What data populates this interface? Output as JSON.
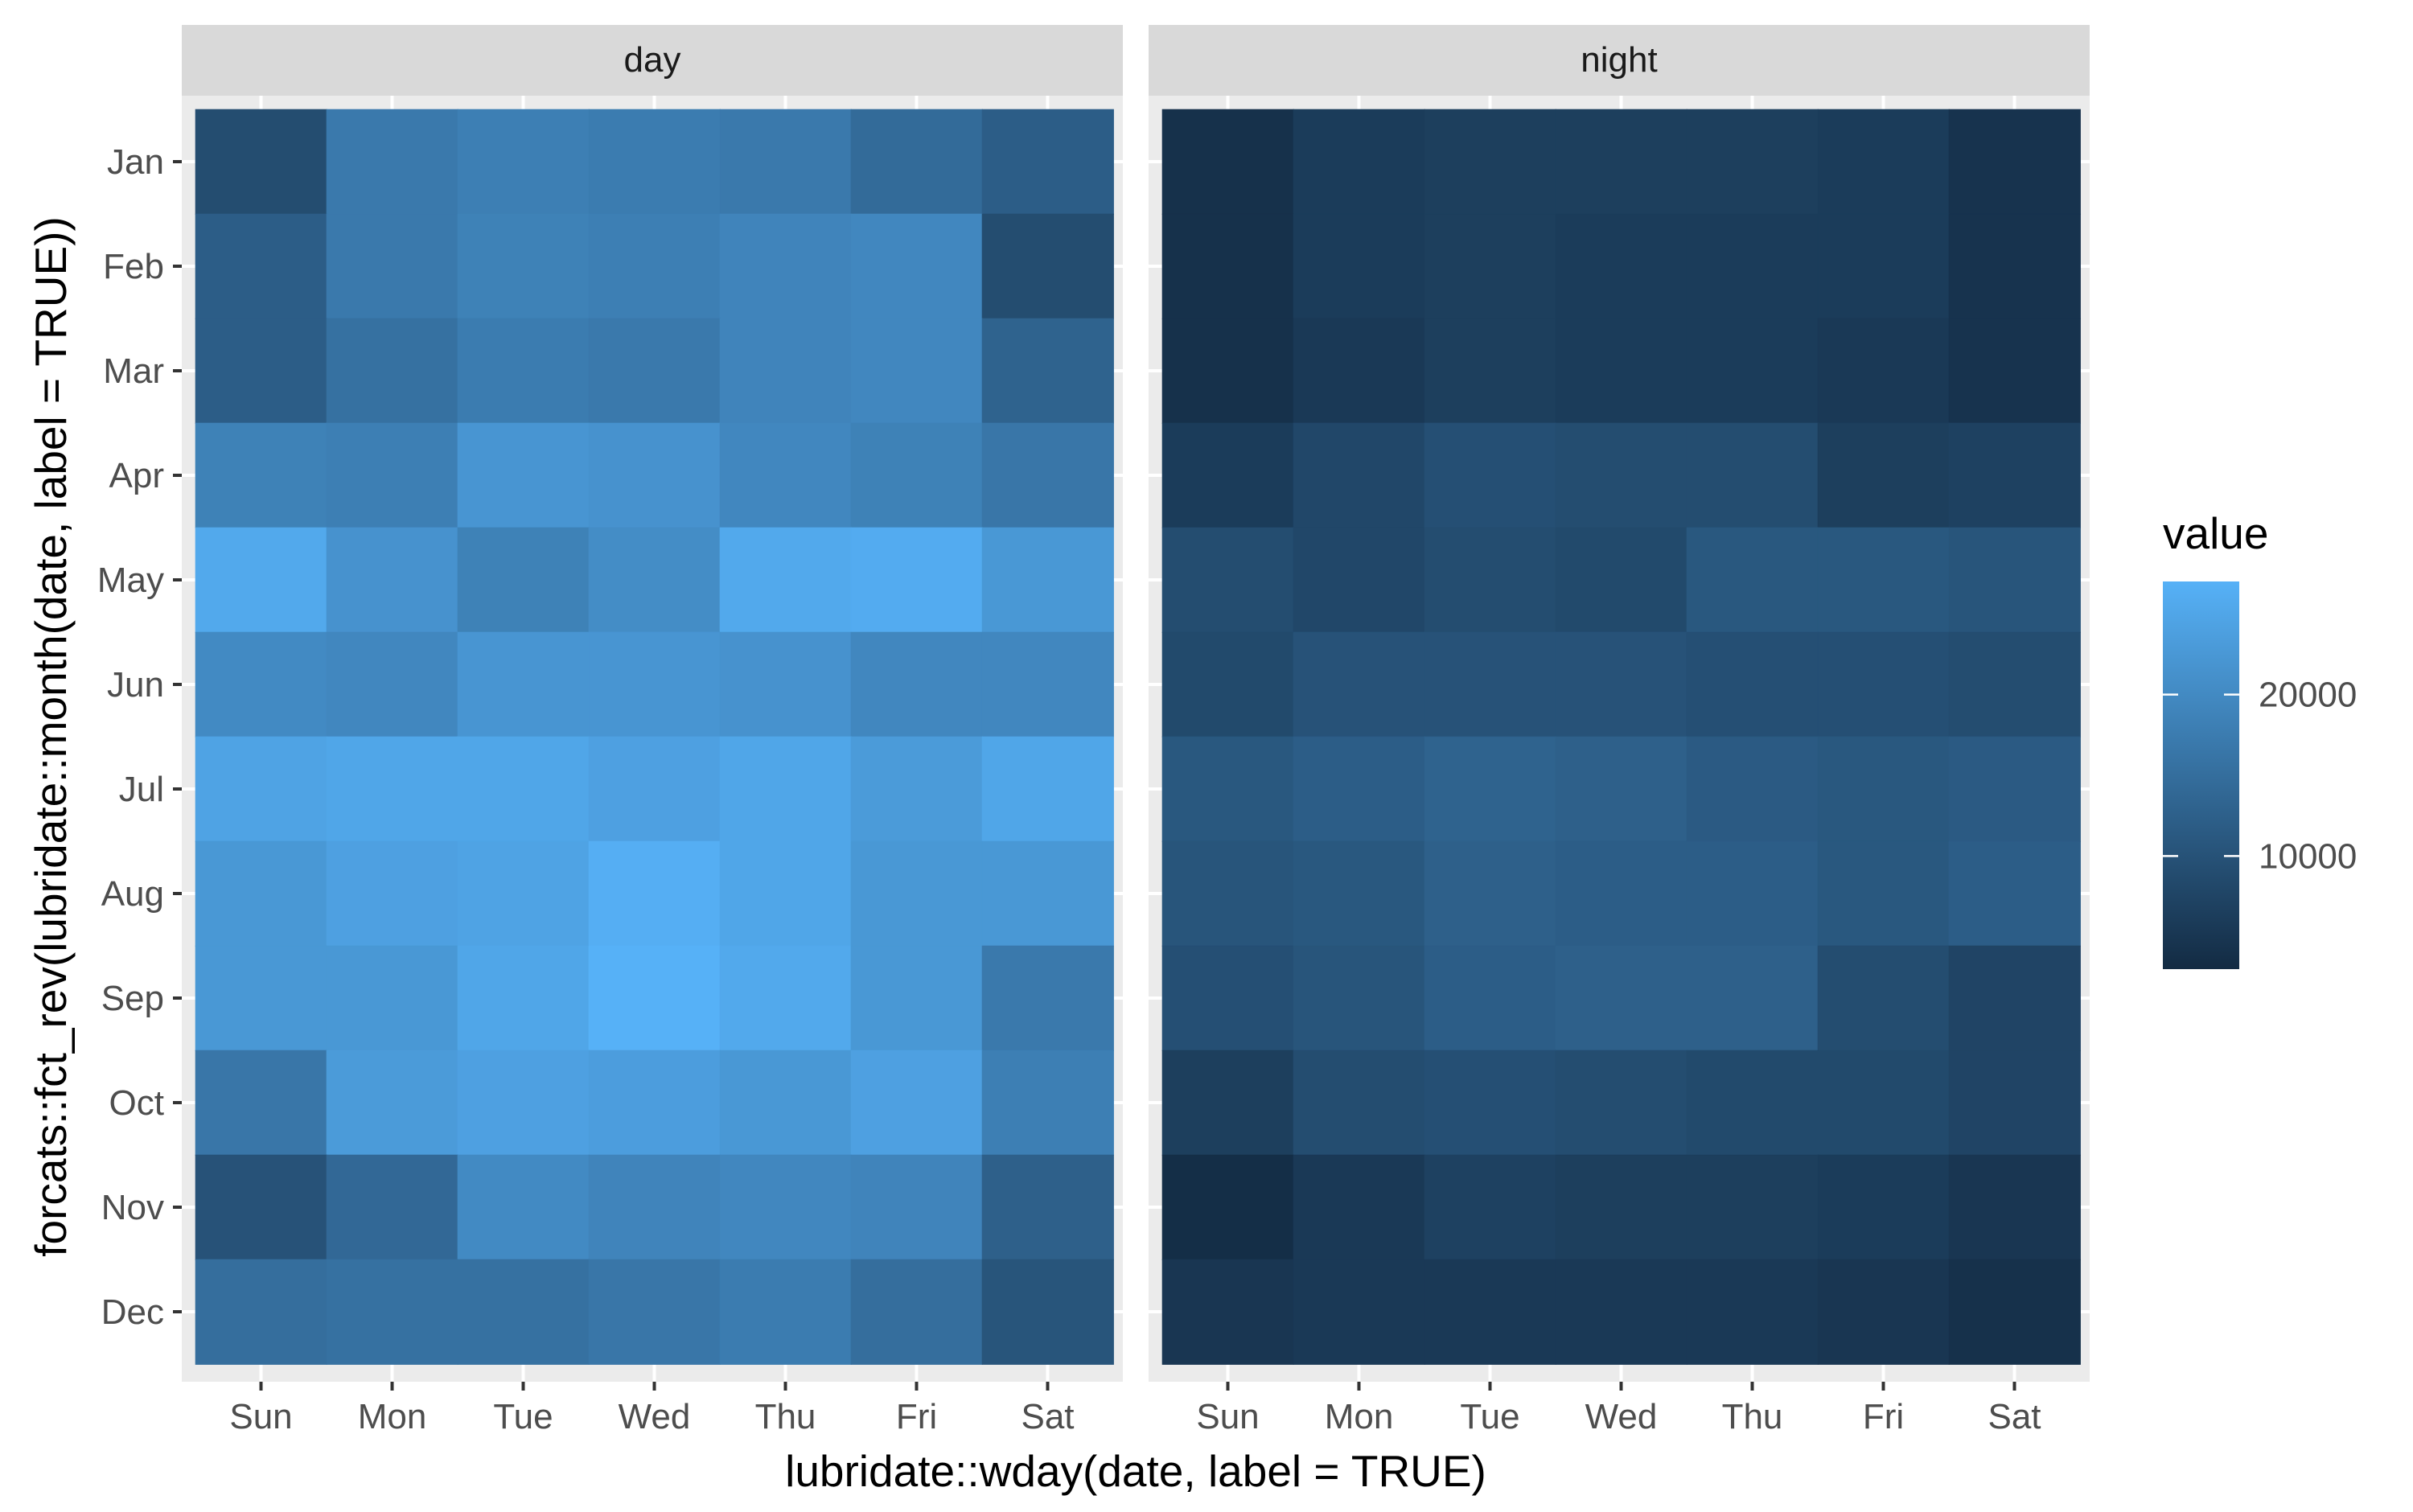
{
  "chart_data": {
    "type": "heatmap",
    "panels": [
      "day",
      "night"
    ],
    "x_categories": [
      "Sun",
      "Mon",
      "Tue",
      "Wed",
      "Thu",
      "Fri",
      "Sat"
    ],
    "y_categories": [
      "Jan",
      "Feb",
      "Mar",
      "Apr",
      "May",
      "Jun",
      "Jul",
      "Aug",
      "Sep",
      "Oct",
      "Nov",
      "Dec"
    ],
    "xlabel": "lubridate::wday(date, label = TRUE)",
    "ylabel": "forcats::fct_rev(lubridate::month(date, label = TRUE))",
    "legend": {
      "title": "value",
      "position": "right",
      "breaks": [
        10000,
        20000
      ],
      "range": [
        3000,
        27000
      ],
      "low_color": "#132B43",
      "high_color": "#56B1F7"
    },
    "series": [
      {
        "name": "day",
        "values": [
          [
            9000,
            17000,
            18000,
            17500,
            17000,
            14500,
            12000
          ],
          [
            12000,
            17000,
            18500,
            18000,
            19000,
            19500,
            9000
          ],
          [
            12000,
            15500,
            17500,
            17000,
            19000,
            19500,
            13000
          ],
          [
            18500,
            18000,
            22000,
            21500,
            19500,
            18500,
            16500
          ],
          [
            25500,
            21500,
            18500,
            20500,
            25500,
            26000,
            22500
          ],
          [
            20000,
            19500,
            22000,
            22000,
            21500,
            19500,
            19500
          ],
          [
            24500,
            25000,
            25000,
            24000,
            25000,
            23000,
            25000
          ],
          [
            22500,
            24000,
            24500,
            26500,
            25000,
            22500,
            22500
          ],
          [
            22500,
            22500,
            25000,
            27000,
            25500,
            22500,
            17000
          ],
          [
            16500,
            23000,
            24000,
            23500,
            22500,
            24000,
            18000
          ],
          [
            10000,
            14000,
            20000,
            19000,
            19500,
            19000,
            12500
          ],
          [
            15000,
            15500,
            15500,
            16500,
            17500,
            15000,
            10500
          ]
        ]
      },
      {
        "name": "night",
        "values": [
          [
            4000,
            6000,
            6500,
            6500,
            6500,
            6000,
            4500
          ],
          [
            4000,
            6000,
            6500,
            6000,
            6000,
            6000,
            4500
          ],
          [
            4000,
            5500,
            6500,
            6000,
            6000,
            5500,
            4500
          ],
          [
            6000,
            8000,
            9500,
            9000,
            9000,
            6500,
            7000
          ],
          [
            9000,
            8000,
            9000,
            8500,
            11000,
            11000,
            10500
          ],
          [
            8500,
            10000,
            10000,
            10000,
            9500,
            9500,
            9000
          ],
          [
            11000,
            12000,
            13000,
            12500,
            11500,
            11000,
            11500
          ],
          [
            10500,
            11000,
            12500,
            12000,
            12000,
            11000,
            12000
          ],
          [
            9500,
            10500,
            12000,
            12500,
            12500,
            9000,
            7500
          ],
          [
            6500,
            9000,
            9500,
            9000,
            8500,
            8500,
            7500
          ],
          [
            3500,
            5500,
            7000,
            6500,
            6500,
            6000,
            5000
          ],
          [
            5000,
            5500,
            5500,
            5500,
            5500,
            5000,
            4000
          ]
        ]
      }
    ],
    "colors": {
      "panel_background": "#EBEBEB",
      "grid": "#FFFFFF",
      "strip_background": "#D9D9D9",
      "strip_text": "#1A1A1A",
      "tick_label": "#4D4D4D",
      "tick": "#333333",
      "axis_title": "#000000"
    }
  }
}
